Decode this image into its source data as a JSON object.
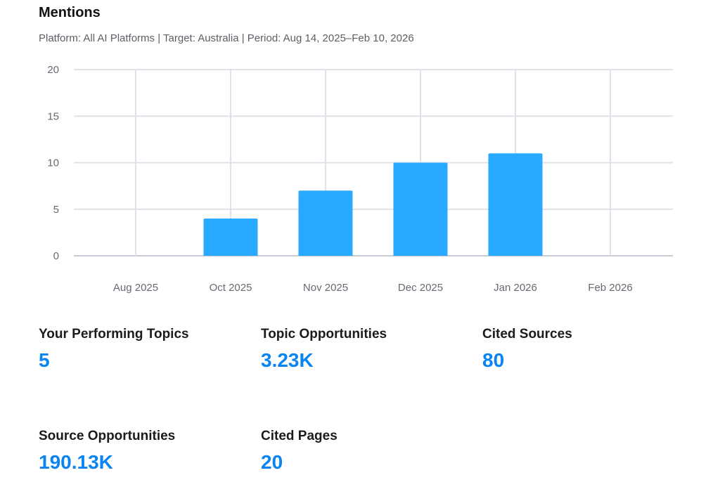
{
  "header": {
    "title": "Mentions",
    "subtitle": "Platform: All AI Platforms | Target: Australia | Period: Aug 14, 2025–Feb 10, 2026"
  },
  "chart_data": {
    "type": "bar",
    "title": "Mentions",
    "categories": [
      "Aug 2025",
      "Oct 2025",
      "Nov 2025",
      "Dec 2025",
      "Jan 2026",
      "Feb 2026"
    ],
    "values": [
      0,
      4,
      7,
      10,
      11,
      0
    ],
    "ylim": [
      0,
      20
    ],
    "yticks": [
      0,
      5,
      10,
      15,
      20
    ],
    "grid": true,
    "bar_color": "#29a9ff",
    "xlabel": "",
    "ylabel": ""
  },
  "stats": [
    {
      "label": "Your Performing Topics",
      "value": "5"
    },
    {
      "label": "Topic Opportunities",
      "value": "3.23K"
    },
    {
      "label": "Cited Sources",
      "value": "80"
    },
    {
      "label": "Source Opportunities",
      "value": "190.13K"
    },
    {
      "label": "Cited Pages",
      "value": "20"
    }
  ]
}
